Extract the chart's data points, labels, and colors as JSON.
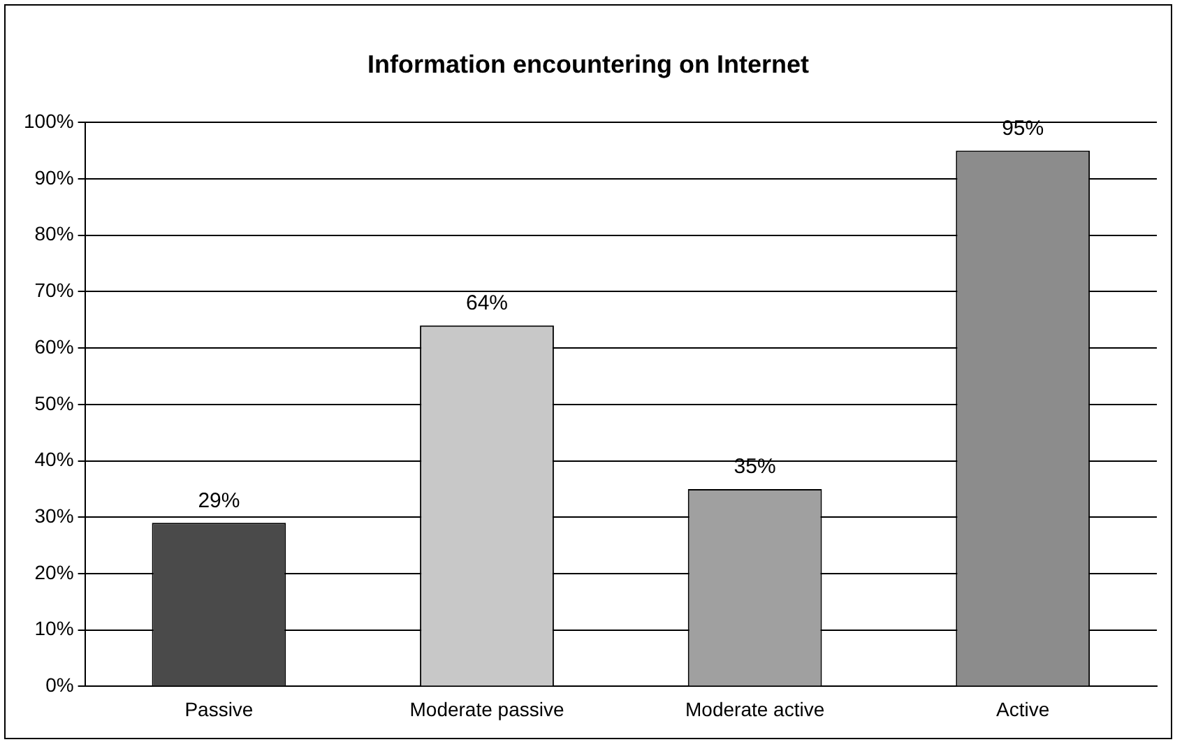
{
  "chart_data": {
    "type": "bar",
    "title": "Information encountering on Internet",
    "categories": [
      "Passive",
      "Moderate passive",
      "Moderate active",
      "Active"
    ],
    "values": [
      29,
      64,
      35,
      95
    ],
    "colors": [
      "#4a4a4a",
      "#c8c8c8",
      "#a0a0a0",
      "#8c8c8c"
    ],
    "ylim": [
      0,
      100
    ],
    "yticks": [
      {
        "value": 0,
        "label": "0%"
      },
      {
        "value": 10,
        "label": "10%"
      },
      {
        "value": 20,
        "label": "20%"
      },
      {
        "value": 30,
        "label": "30%"
      },
      {
        "value": 40,
        "label": "40%"
      },
      {
        "value": 50,
        "label": "50%"
      },
      {
        "value": 60,
        "label": "60%"
      },
      {
        "value": 70,
        "label": "70%"
      },
      {
        "value": 80,
        "label": "80%"
      },
      {
        "value": 90,
        "label": "90%"
      },
      {
        "value": 100,
        "label": "100%"
      }
    ],
    "value_labels": [
      "29%",
      "64%",
      "35%",
      "95%"
    ],
    "grid": "y",
    "legend": false
  }
}
